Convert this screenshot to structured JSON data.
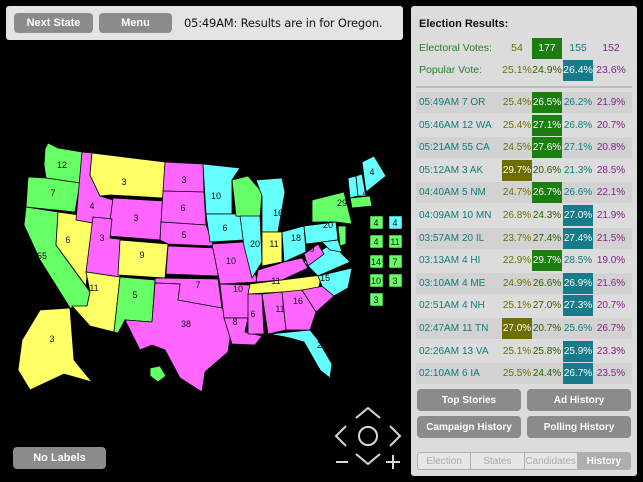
{
  "topbar": {
    "next_state_label": "Next State",
    "menu_label": "Menu",
    "status": "05:49AM: Results are in for Oregon."
  },
  "map": {
    "no_labels_label": "No Labels",
    "colors": {
      "republican": "#ff66ff",
      "democrat": "#66ff66",
      "independent": "#66ffff",
      "green": "#ffff66"
    },
    "state_labels": [
      "12",
      "7",
      "3",
      "4",
      "3",
      "6",
      "3",
      "55",
      "9",
      "5",
      "5",
      "11",
      "3",
      "4",
      "29",
      "6",
      "20",
      "10",
      "16",
      "18",
      "20",
      "10",
      "7",
      "11",
      "9",
      "6",
      "38",
      "8",
      "6",
      "16",
      "11",
      "15",
      "10",
      "11",
      "29",
      "3",
      "4",
      "4",
      "11",
      "14",
      "7",
      "10",
      "3",
      "3"
    ]
  },
  "results": {
    "title": "Election Results:",
    "electoral": {
      "label": "Electoral Votes:",
      "values": [
        "54",
        "177",
        "155",
        "152"
      ]
    },
    "popular": {
      "label": "Popular Vote:",
      "values": [
        "25.1%",
        "24.9%",
        "26.4%",
        "23.6%"
      ]
    }
  },
  "history": [
    {
      "time": "05:49AM",
      "state": "7 OR",
      "values": [
        "25.4%",
        "26.5%",
        "26.2%",
        "21.9%"
      ],
      "winner": 1
    },
    {
      "time": "05:46AM",
      "state": "12 WA",
      "values": [
        "25.4%",
        "27.1%",
        "26.8%",
        "20.7%"
      ],
      "winner": 1
    },
    {
      "time": "05:21AM",
      "state": "55 CA",
      "values": [
        "24.5%",
        "27.6%",
        "27.1%",
        "20.8%"
      ],
      "winner": 1
    },
    {
      "time": "05:12AM",
      "state": "3 AK",
      "values": [
        "29.7%",
        "20.6%",
        "21.3%",
        "28.5%"
      ],
      "winner": 0
    },
    {
      "time": "04:40AM",
      "state": "5 NM",
      "values": [
        "24.7%",
        "26.7%",
        "26.6%",
        "22.1%"
      ],
      "winner": 1
    },
    {
      "time": "04:09AM",
      "state": "10 MN",
      "values": [
        "26.8%",
        "24.3%",
        "27.0%",
        "21.9%"
      ],
      "winner": 2
    },
    {
      "time": "03:57AM",
      "state": "20 IL",
      "values": [
        "23.7%",
        "27.4%",
        "27.4%",
        "21.5%"
      ],
      "winner": 2
    },
    {
      "time": "03:13AM",
      "state": "4 HI",
      "values": [
        "22.9%",
        "29.7%",
        "28.5%",
        "19.0%"
      ],
      "winner": 1
    },
    {
      "time": "03:10AM",
      "state": "4 ME",
      "values": [
        "24.9%",
        "26.6%",
        "26.9%",
        "21.6%"
      ],
      "winner": 2
    },
    {
      "time": "02:51AM",
      "state": "4 NH",
      "values": [
        "25.1%",
        "27.0%",
        "27.3%",
        "20.7%"
      ],
      "winner": 2
    },
    {
      "time": "02:47AM",
      "state": "11 TN",
      "values": [
        "27.0%",
        "20.7%",
        "25.6%",
        "26.7%"
      ],
      "winner": 0
    },
    {
      "time": "02:26AM",
      "state": "13 VA",
      "values": [
        "25.1%",
        "25.8%",
        "25.9%",
        "23.3%"
      ],
      "winner": 2
    },
    {
      "time": "02:10AM",
      "state": "6 IA",
      "values": [
        "25.5%",
        "24.4%",
        "26.7%",
        "23.5%"
      ],
      "winner": 2
    }
  ],
  "buttons": {
    "top_stories": "Top Stories",
    "ad_history": "Ad History",
    "campaign_history": "Campaign History",
    "polling_history": "Polling History"
  },
  "tabs": [
    "Election",
    "States",
    "Candidates",
    "History"
  ],
  "active_tab": "History"
}
